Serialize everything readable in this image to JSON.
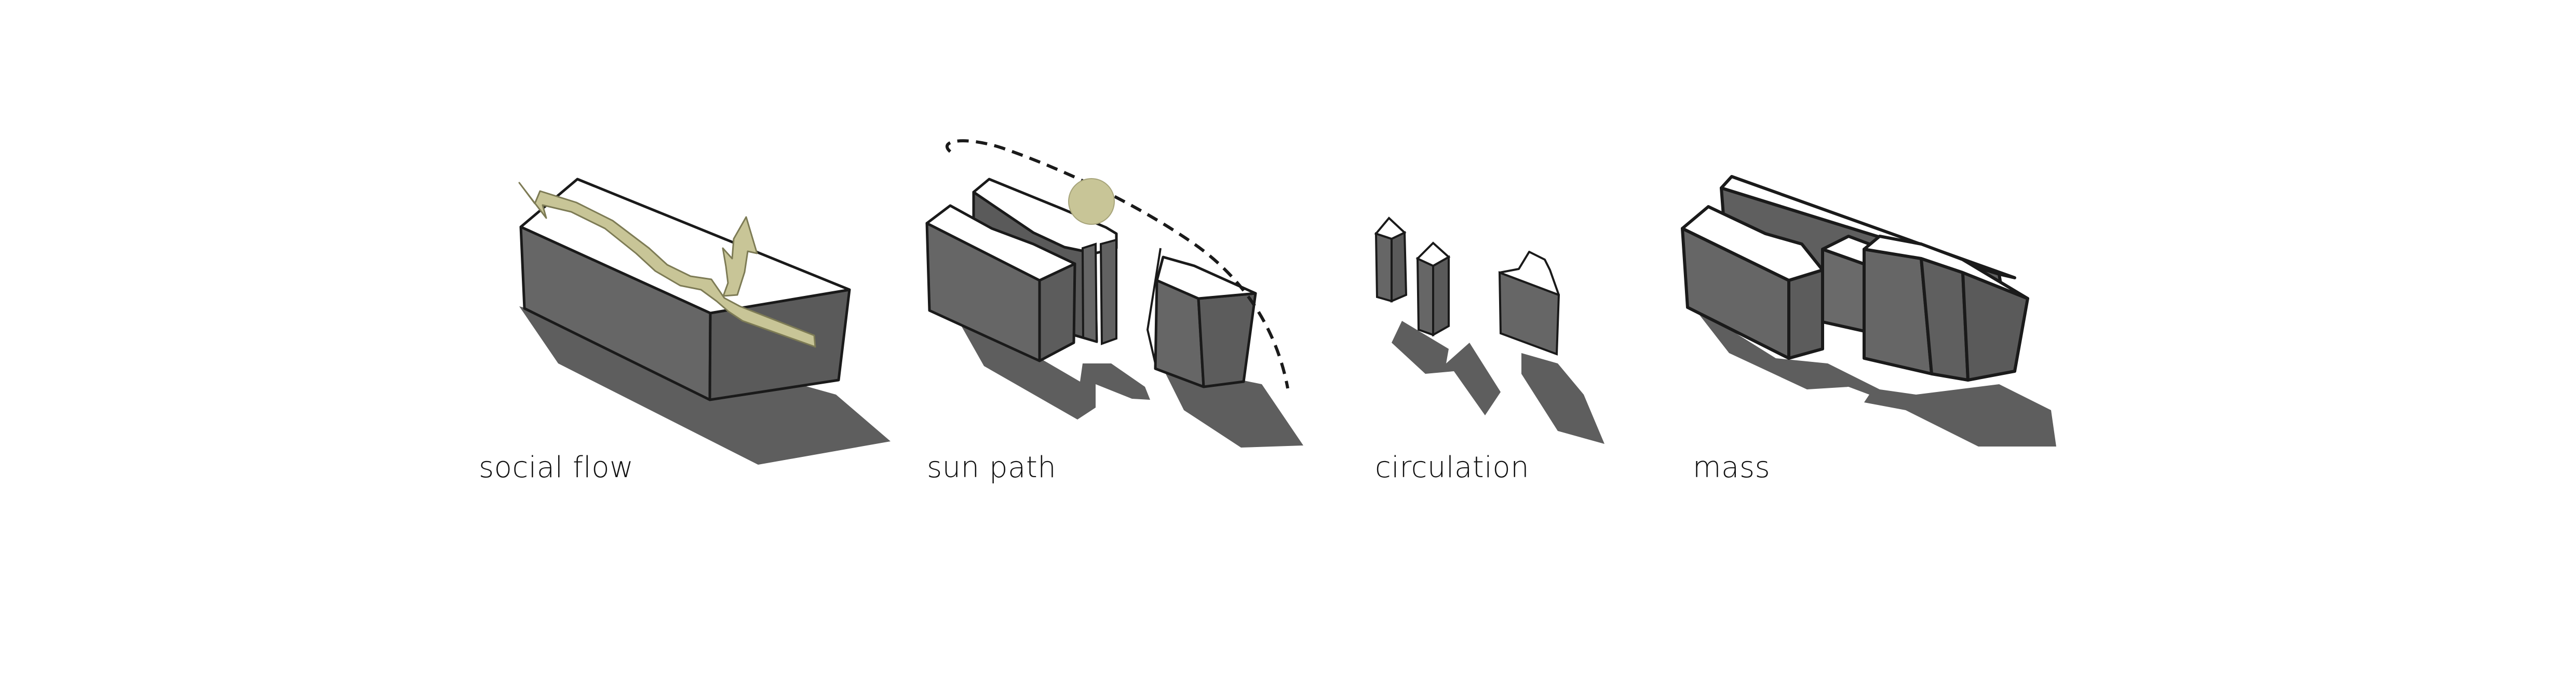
{
  "diagrams": [
    {
      "label": "social flow"
    },
    {
      "label": "sun path"
    },
    {
      "label": "circulation"
    },
    {
      "label": "mass"
    }
  ],
  "colors": {
    "background": "#ffffff",
    "mass_fill": "#666666",
    "top_face": "#ffffff",
    "shadow": "#5e5e5e",
    "outline": "#1a1a1a",
    "accent": "#c8c597",
    "accent_stroke": "#7d7b55"
  },
  "icons": [
    "social-flow-arrow",
    "sun-icon",
    "sun-path-arc"
  ]
}
